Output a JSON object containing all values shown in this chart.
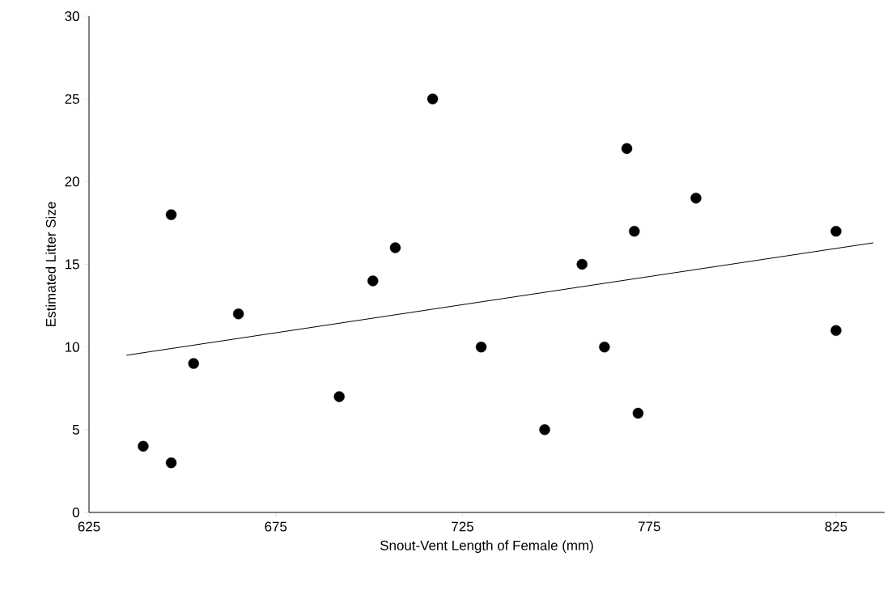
{
  "chart_data": {
    "type": "scatter",
    "xlabel": "Snout-Vent Length of Female (mm)",
    "ylabel": "Estimated Litter Size",
    "xlim": [
      625,
      838
    ],
    "ylim": [
      0,
      30
    ],
    "xticks": [
      625,
      675,
      725,
      775,
      825
    ],
    "yticks": [
      0,
      5,
      10,
      15,
      20,
      25,
      30
    ],
    "grid": false,
    "series": [
      {
        "type": "scatter",
        "marker": "circle",
        "color": "#000000",
        "x": [
          639.5,
          647,
          647,
          653,
          665,
          692,
          701,
          707,
          717,
          730,
          747,
          757,
          763,
          769,
          771,
          772,
          787.5,
          825,
          825
        ],
        "values": [
          4,
          18,
          3,
          9,
          12,
          7,
          14,
          16,
          25,
          10,
          5,
          15,
          10,
          22,
          17,
          6,
          19,
          17,
          11
        ]
      },
      {
        "type": "line",
        "color": "#000000",
        "marker": "none",
        "x": [
          635,
          835
        ],
        "values": [
          9.5,
          16.3
        ]
      }
    ]
  }
}
